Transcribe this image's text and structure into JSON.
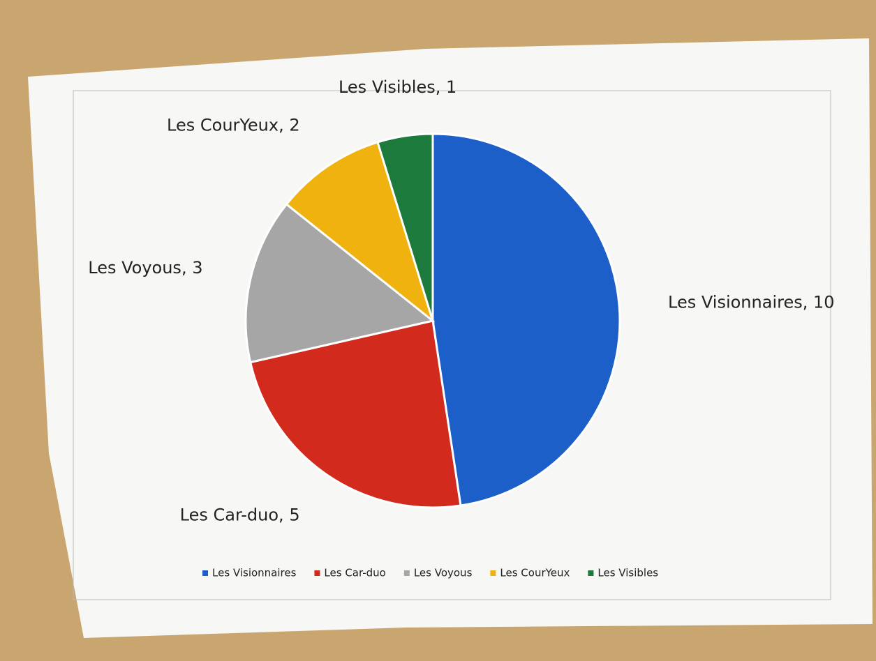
{
  "chart_data": {
    "type": "pie",
    "categories": [
      "Les Visionnaires",
      "Les Car-duo",
      "Les Voyous",
      "Les CourYeux",
      "Les Visibles"
    ],
    "values": [
      10,
      5,
      3,
      2,
      1
    ],
    "value_labels": [
      "Les Visionnaires, 10",
      "Les Car-duo, 5",
      "Les Voyous, 3",
      "Les CourYeux, 2",
      "Les Visibles, 1"
    ],
    "colors": [
      "#1d5fc9",
      "#d32a1e",
      "#a6a6a6",
      "#f0b20e",
      "#1b7a3c"
    ],
    "legend": "bottom"
  }
}
